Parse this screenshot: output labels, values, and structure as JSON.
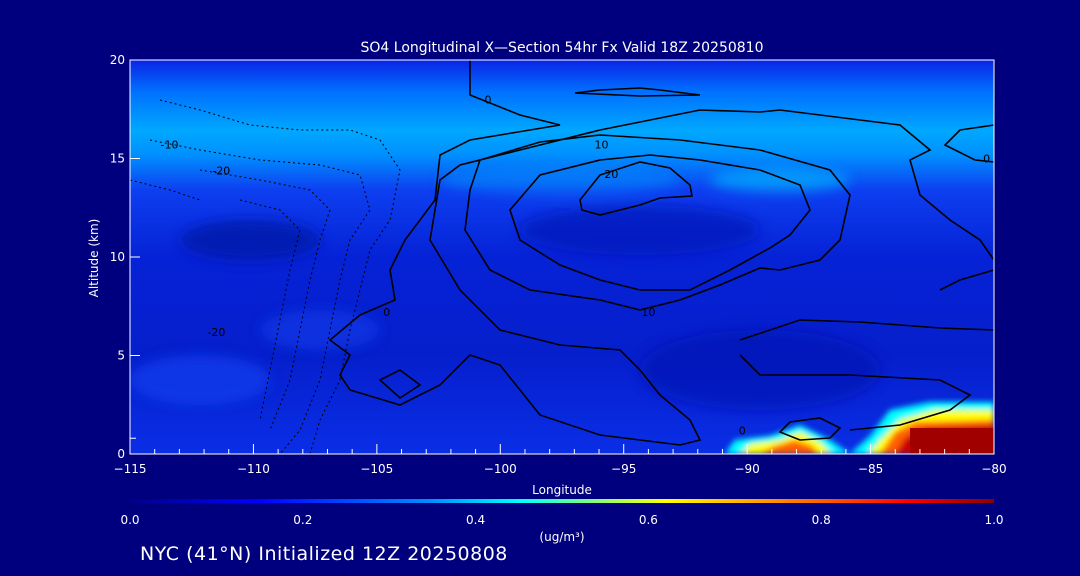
{
  "chart_data": {
    "type": "heatmap",
    "title": "SO4 Longitudinal X—Section 54hr  Fx Valid 18Z 20250810",
    "xlabel": "Longitude",
    "ylabel": "Altitude (km)",
    "xlim": [
      -115,
      -80
    ],
    "ylim": [
      0,
      20
    ],
    "x_ticks": [
      -115,
      -110,
      -105,
      -100,
      -95,
      -90,
      -85,
      -80
    ],
    "y_ticks": [
      0,
      5,
      10,
      15,
      20
    ],
    "colorbar": {
      "label": "(ug/m³)",
      "range": [
        0.0,
        1.0
      ],
      "ticks": [
        "0.0",
        "0.2",
        "0.4",
        "0.6",
        "0.8",
        "1.0"
      ],
      "colormap": "blue-cyan-yellow-red"
    },
    "grid": false,
    "contour_lines": [
      {
        "label": "0",
        "x": -100.5,
        "y": 17.8
      },
      {
        "label": "-10",
        "x": -113.4,
        "y": 15.5
      },
      {
        "label": "-20",
        "x": -111.3,
        "y": 14.2
      },
      {
        "label": "10",
        "x": -95.9,
        "y": 15.5
      },
      {
        "label": "20",
        "x": -95.5,
        "y": 14.0
      },
      {
        "label": "10",
        "x": -94.0,
        "y": 7.0
      },
      {
        "label": "0",
        "x": -104.6,
        "y": 7.0
      },
      {
        "label": "-20",
        "x": -111.5,
        "y": 6.0
      },
      {
        "label": "0",
        "x": -90.2,
        "y": 1.0
      },
      {
        "label": "0",
        "x": -80.3,
        "y": 14.8
      }
    ],
    "high_concentration_regions": [
      {
        "lon_range": [
          -90.5,
          -87.5
        ],
        "alt_range": [
          0,
          1.2
        ],
        "max": 1.0
      },
      {
        "lon_range": [
          -84.5,
          -80
        ],
        "alt_range": [
          0,
          2.4
        ],
        "max": 1.0
      }
    ]
  },
  "footer": "NYC (41°N) Initialized 12Z 20250808",
  "colors": {
    "background": "#00007f",
    "axis": "#ffffff",
    "contour": "#000000"
  }
}
